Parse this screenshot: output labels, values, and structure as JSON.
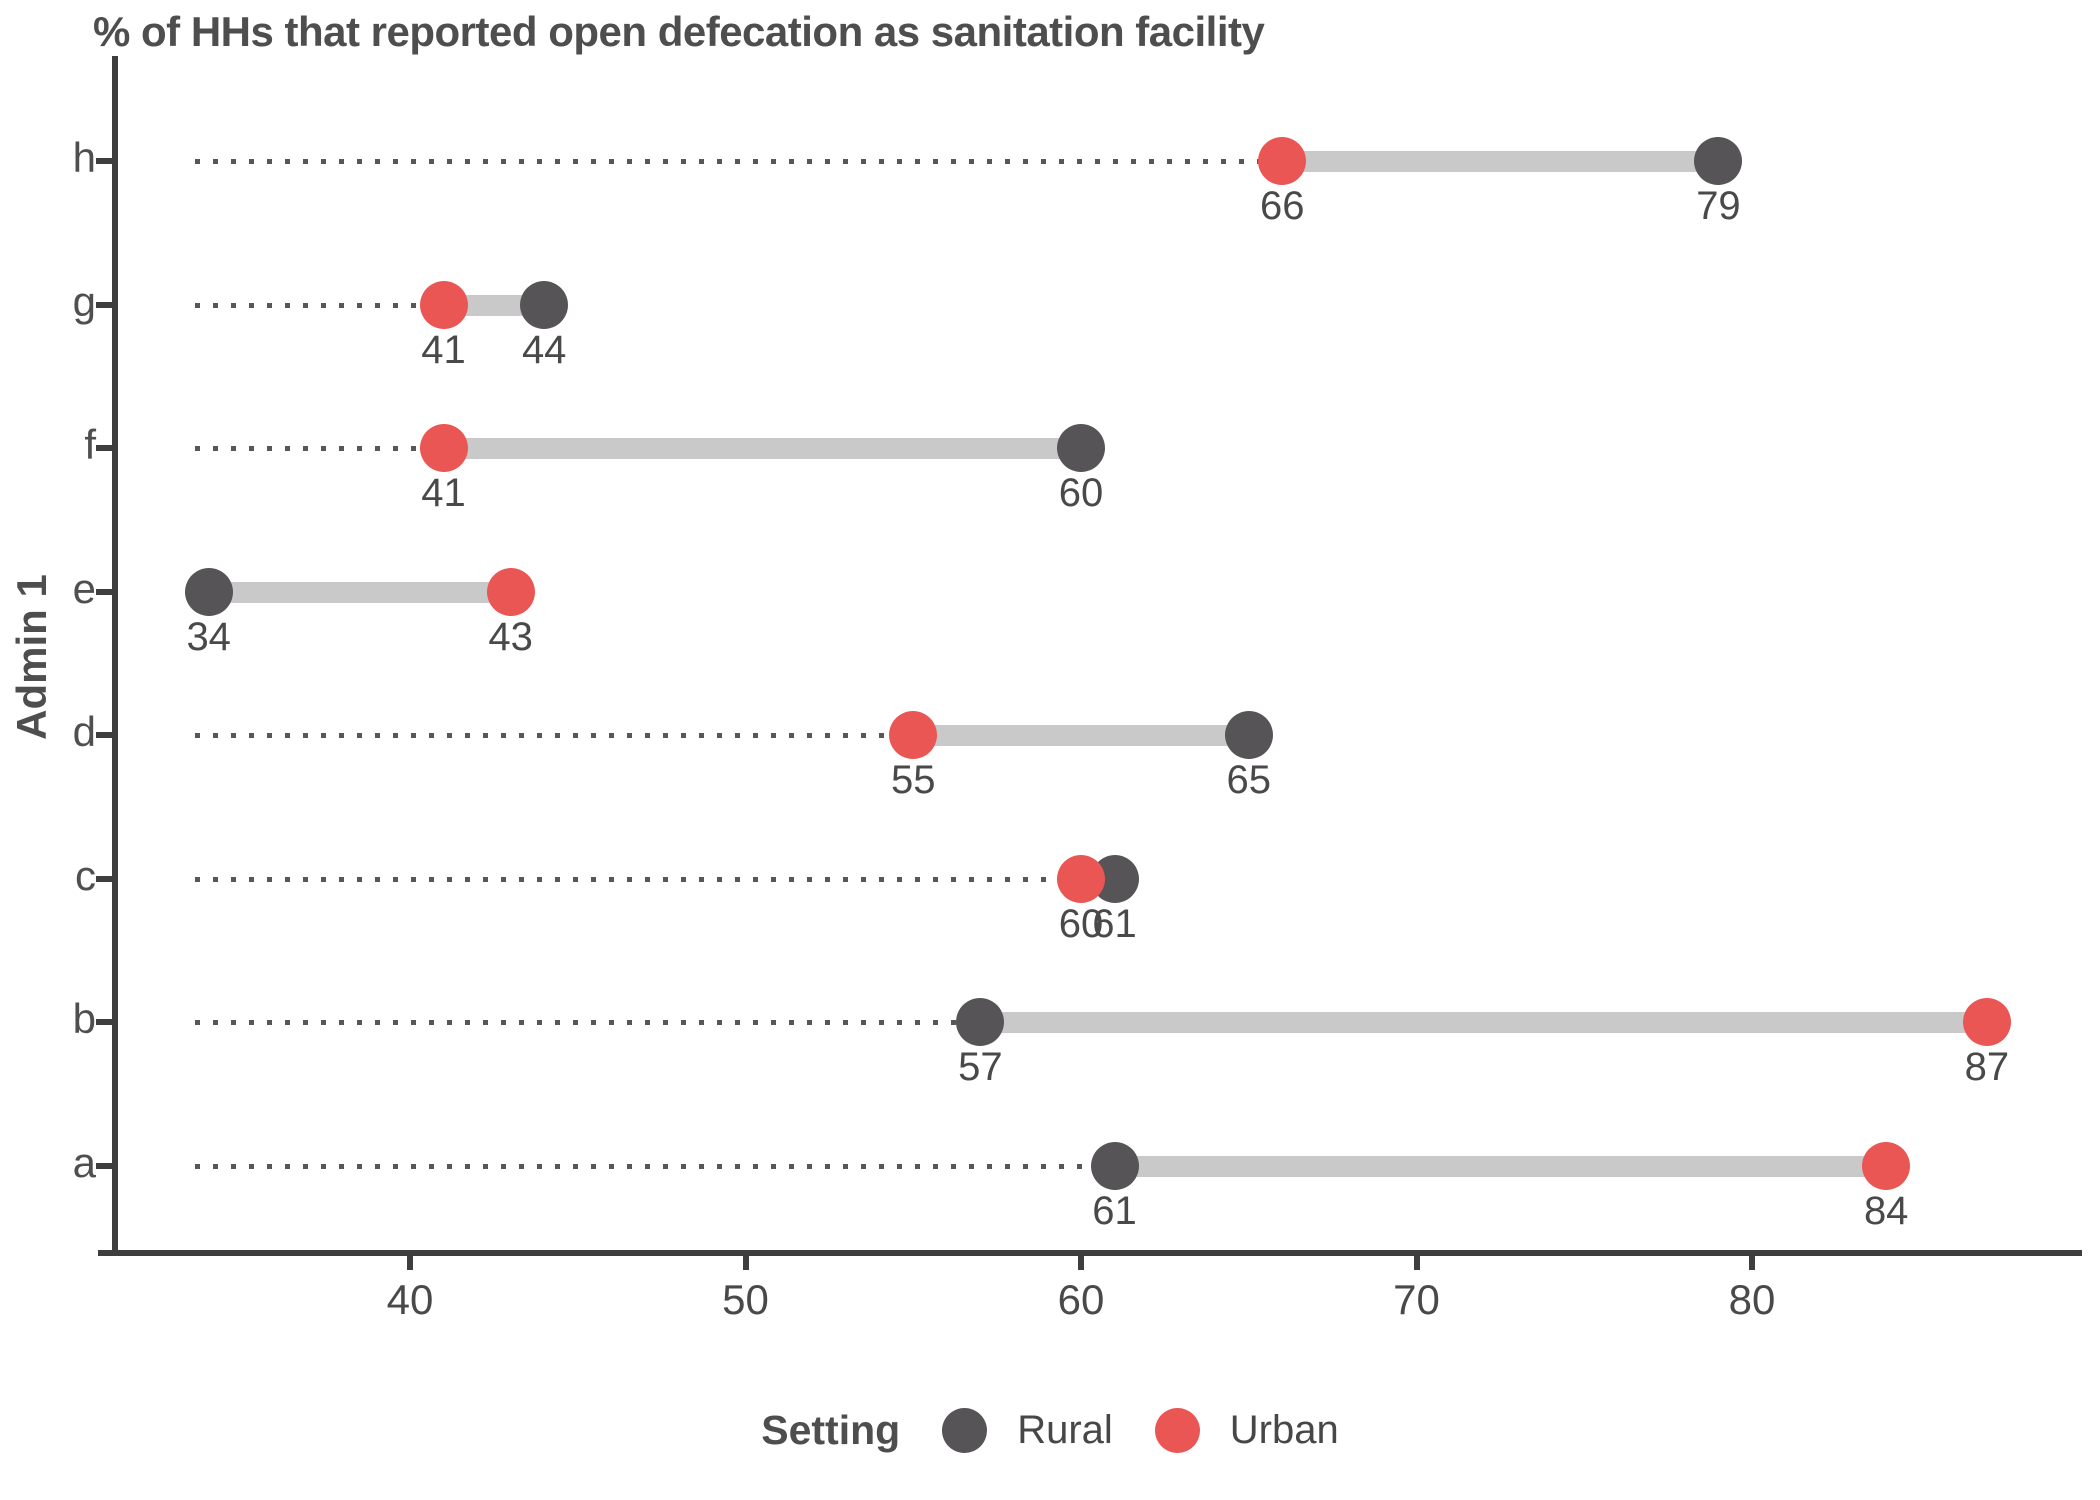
{
  "chart_data": {
    "type": "scatter",
    "subtype": "dumbbell",
    "title": "% of HHs that reported open defecation as sanitation facility",
    "xlabel": "",
    "ylabel": "Admin 1",
    "categories": [
      "h",
      "g",
      "f",
      "e",
      "d",
      "c",
      "b",
      "a"
    ],
    "series": [
      {
        "name": "Rural",
        "color": "#565456",
        "values": [
          79,
          44,
          60,
          34,
          65,
          61,
          57,
          61
        ]
      },
      {
        "name": "Urban",
        "color": "#EA5654",
        "values": [
          66,
          41,
          41,
          43,
          55,
          60,
          87,
          84
        ]
      }
    ],
    "xlim": [
      31,
      90
    ],
    "xticks": [
      40,
      50,
      60,
      70,
      80
    ],
    "grid": false,
    "legend_title": "Setting",
    "legend_position": "bottom",
    "connector_color": "#C9C9CA",
    "leader_color": "#575757",
    "axis_color": "#3E3E3E"
  }
}
